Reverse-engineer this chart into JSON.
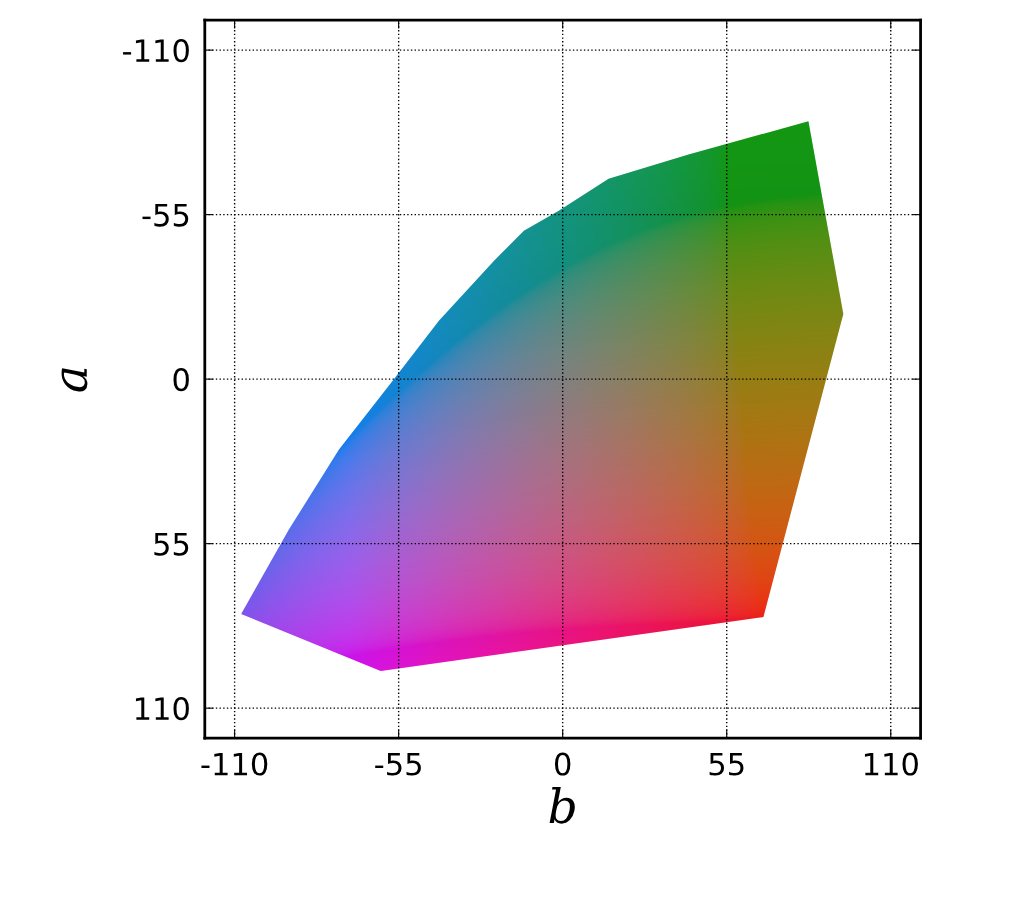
{
  "chart_data": {
    "type": "area",
    "xlabel": "b",
    "ylabel": "a",
    "series": [
      {
        "x": [
          -107.8,
          -61,
          67.3,
          94.1,
          82.4,
          42.2,
          15.4,
          -1.3,
          -13,
          -23,
          -41.5,
          -56.6,
          -75,
          -91.8,
          -107.8
        ],
        "values": [
          78.5,
          97.6,
          79.5,
          -21.8,
          -86.2,
          -75.1,
          -67,
          -56.3,
          -49.6,
          -39.6,
          -19.5,
          0,
          23.5,
          50.3,
          78.5
        ]
      }
    ],
    "xlim": [
      -120,
      120
    ],
    "ylim": [
      120,
      -120
    ],
    "xticks": [
      -110,
      -55,
      0,
      55,
      110
    ],
    "yticks": [
      -110,
      -55,
      0,
      55,
      110
    ],
    "grid": true,
    "line_style": "dotted"
  }
}
